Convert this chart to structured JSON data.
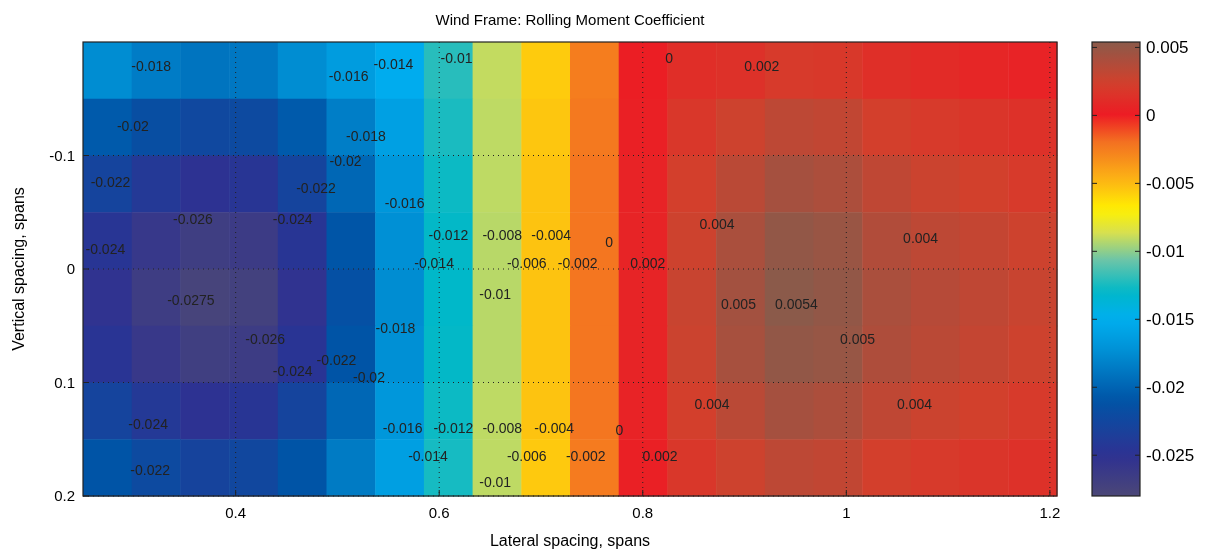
{
  "chart_data": {
    "type": "heatmap",
    "title": "Wind Frame: Rolling Moment Coefficient",
    "xlabel": "Lateral spacing, spans",
    "ylabel": "Vertical spacing, spans",
    "xlim": [
      0.25,
      1.207
    ],
    "xticks": [
      0.4,
      0.6,
      0.8,
      1,
      1.2
    ],
    "ylim": [
      0.2,
      -0.2
    ],
    "yticks": [
      -0.1,
      0,
      0.1,
      0.2
    ],
    "grid": true,
    "clim": [
      -0.028,
      0.0054
    ],
    "cticks": [
      -0.025,
      -0.02,
      -0.015,
      -0.01,
      -0.005,
      0,
      0.005
    ],
    "cells": [
      [
        -0.0175,
        -0.0185,
        -0.019,
        -0.0188,
        -0.0175,
        -0.0164,
        -0.0151,
        -0.0121,
        -0.009,
        -0.0056,
        -0.0025,
        0.0002,
        0.0012,
        0.0014,
        0.002,
        0.0019,
        0.0013,
        0.001,
        0.0007,
        0.0005
      ],
      [
        -0.0206,
        -0.0217,
        -0.0224,
        -0.0221,
        -0.0206,
        -0.0184,
        -0.0161,
        -0.0124,
        -0.0091,
        -0.0054,
        -0.0023,
        0.0003,
        0.0018,
        0.0026,
        0.0033,
        0.0031,
        0.0023,
        0.002,
        0.0017,
        0.0014
      ],
      [
        -0.0228,
        -0.0241,
        -0.0249,
        -0.0245,
        -0.0228,
        -0.0198,
        -0.0168,
        -0.0127,
        -0.0091,
        -0.0053,
        -0.0022,
        0.0005,
        0.0023,
        0.0034,
        0.0043,
        0.004,
        0.0032,
        0.0027,
        0.0024,
        0.002
      ],
      [
        -0.0245,
        -0.0259,
        -0.0268,
        -0.0264,
        -0.0245,
        -0.0209,
        -0.0173,
        -0.0129,
        -0.0092,
        -0.0053,
        -0.0022,
        0.0006,
        0.0026,
        0.0041,
        0.0051,
        0.0048,
        0.0038,
        0.0033,
        0.003,
        0.0026
      ],
      [
        -0.0252,
        -0.0267,
        -0.0276,
        -0.0272,
        -0.0252,
        -0.0214,
        -0.0175,
        -0.013,
        -0.0092,
        -0.0053,
        -0.0022,
        0.0006,
        0.0028,
        0.0044,
        0.0054,
        0.0051,
        0.0041,
        0.0036,
        0.0032,
        0.0028
      ],
      [
        -0.0246,
        -0.026,
        -0.0269,
        -0.0265,
        -0.0246,
        -0.021,
        -0.0173,
        -0.0129,
        -0.0092,
        -0.0053,
        -0.0022,
        0.0006,
        0.0027,
        0.0042,
        0.0051,
        0.0049,
        0.0039,
        0.0034,
        0.003,
        0.0026
      ],
      [
        -0.0228,
        -0.0241,
        -0.0249,
        -0.0245,
        -0.0228,
        -0.0198,
        -0.0168,
        -0.0127,
        -0.0091,
        -0.0053,
        -0.0022,
        0.0005,
        0.0023,
        0.0034,
        0.0043,
        0.004,
        0.0032,
        0.0027,
        0.0024,
        0.002
      ],
      [
        -0.021,
        -0.0221,
        -0.0229,
        -0.0225,
        -0.021,
        -0.0186,
        -0.0162,
        -0.0125,
        -0.0091,
        -0.0055,
        -0.0024,
        0.0003,
        0.0018,
        0.0026,
        0.0033,
        0.0031,
        0.0023,
        0.002,
        0.0017,
        0.0014
      ]
    ],
    "annotations": [
      "-0.018",
      "-0.02",
      "-0.022",
      "-0.024",
      "-0.026",
      "-0.0275",
      "-0.024",
      "-0.022",
      "-0.02",
      "-0.018",
      "-0.016",
      "-0.014",
      "-0.01",
      "-0.026",
      "-0.024",
      "-0.022",
      "-0.02",
      "-0.018",
      "-0.024",
      "-0.022",
      "-0.016",
      "-0.014",
      "-0.012",
      "-0.01",
      "-0.008",
      "-0.006",
      "-0.004",
      "-0.002",
      "0",
      "0.002",
      "-0.016",
      "-0.014",
      "-0.012",
      "-0.01",
      "-0.008",
      "-0.006",
      "-0.004",
      "-0.002",
      "0",
      "0.002",
      "0",
      "0.002",
      "0.004",
      "0.004",
      "0.005",
      "0.0054",
      "0.005",
      "0.004",
      "0.004"
    ]
  }
}
